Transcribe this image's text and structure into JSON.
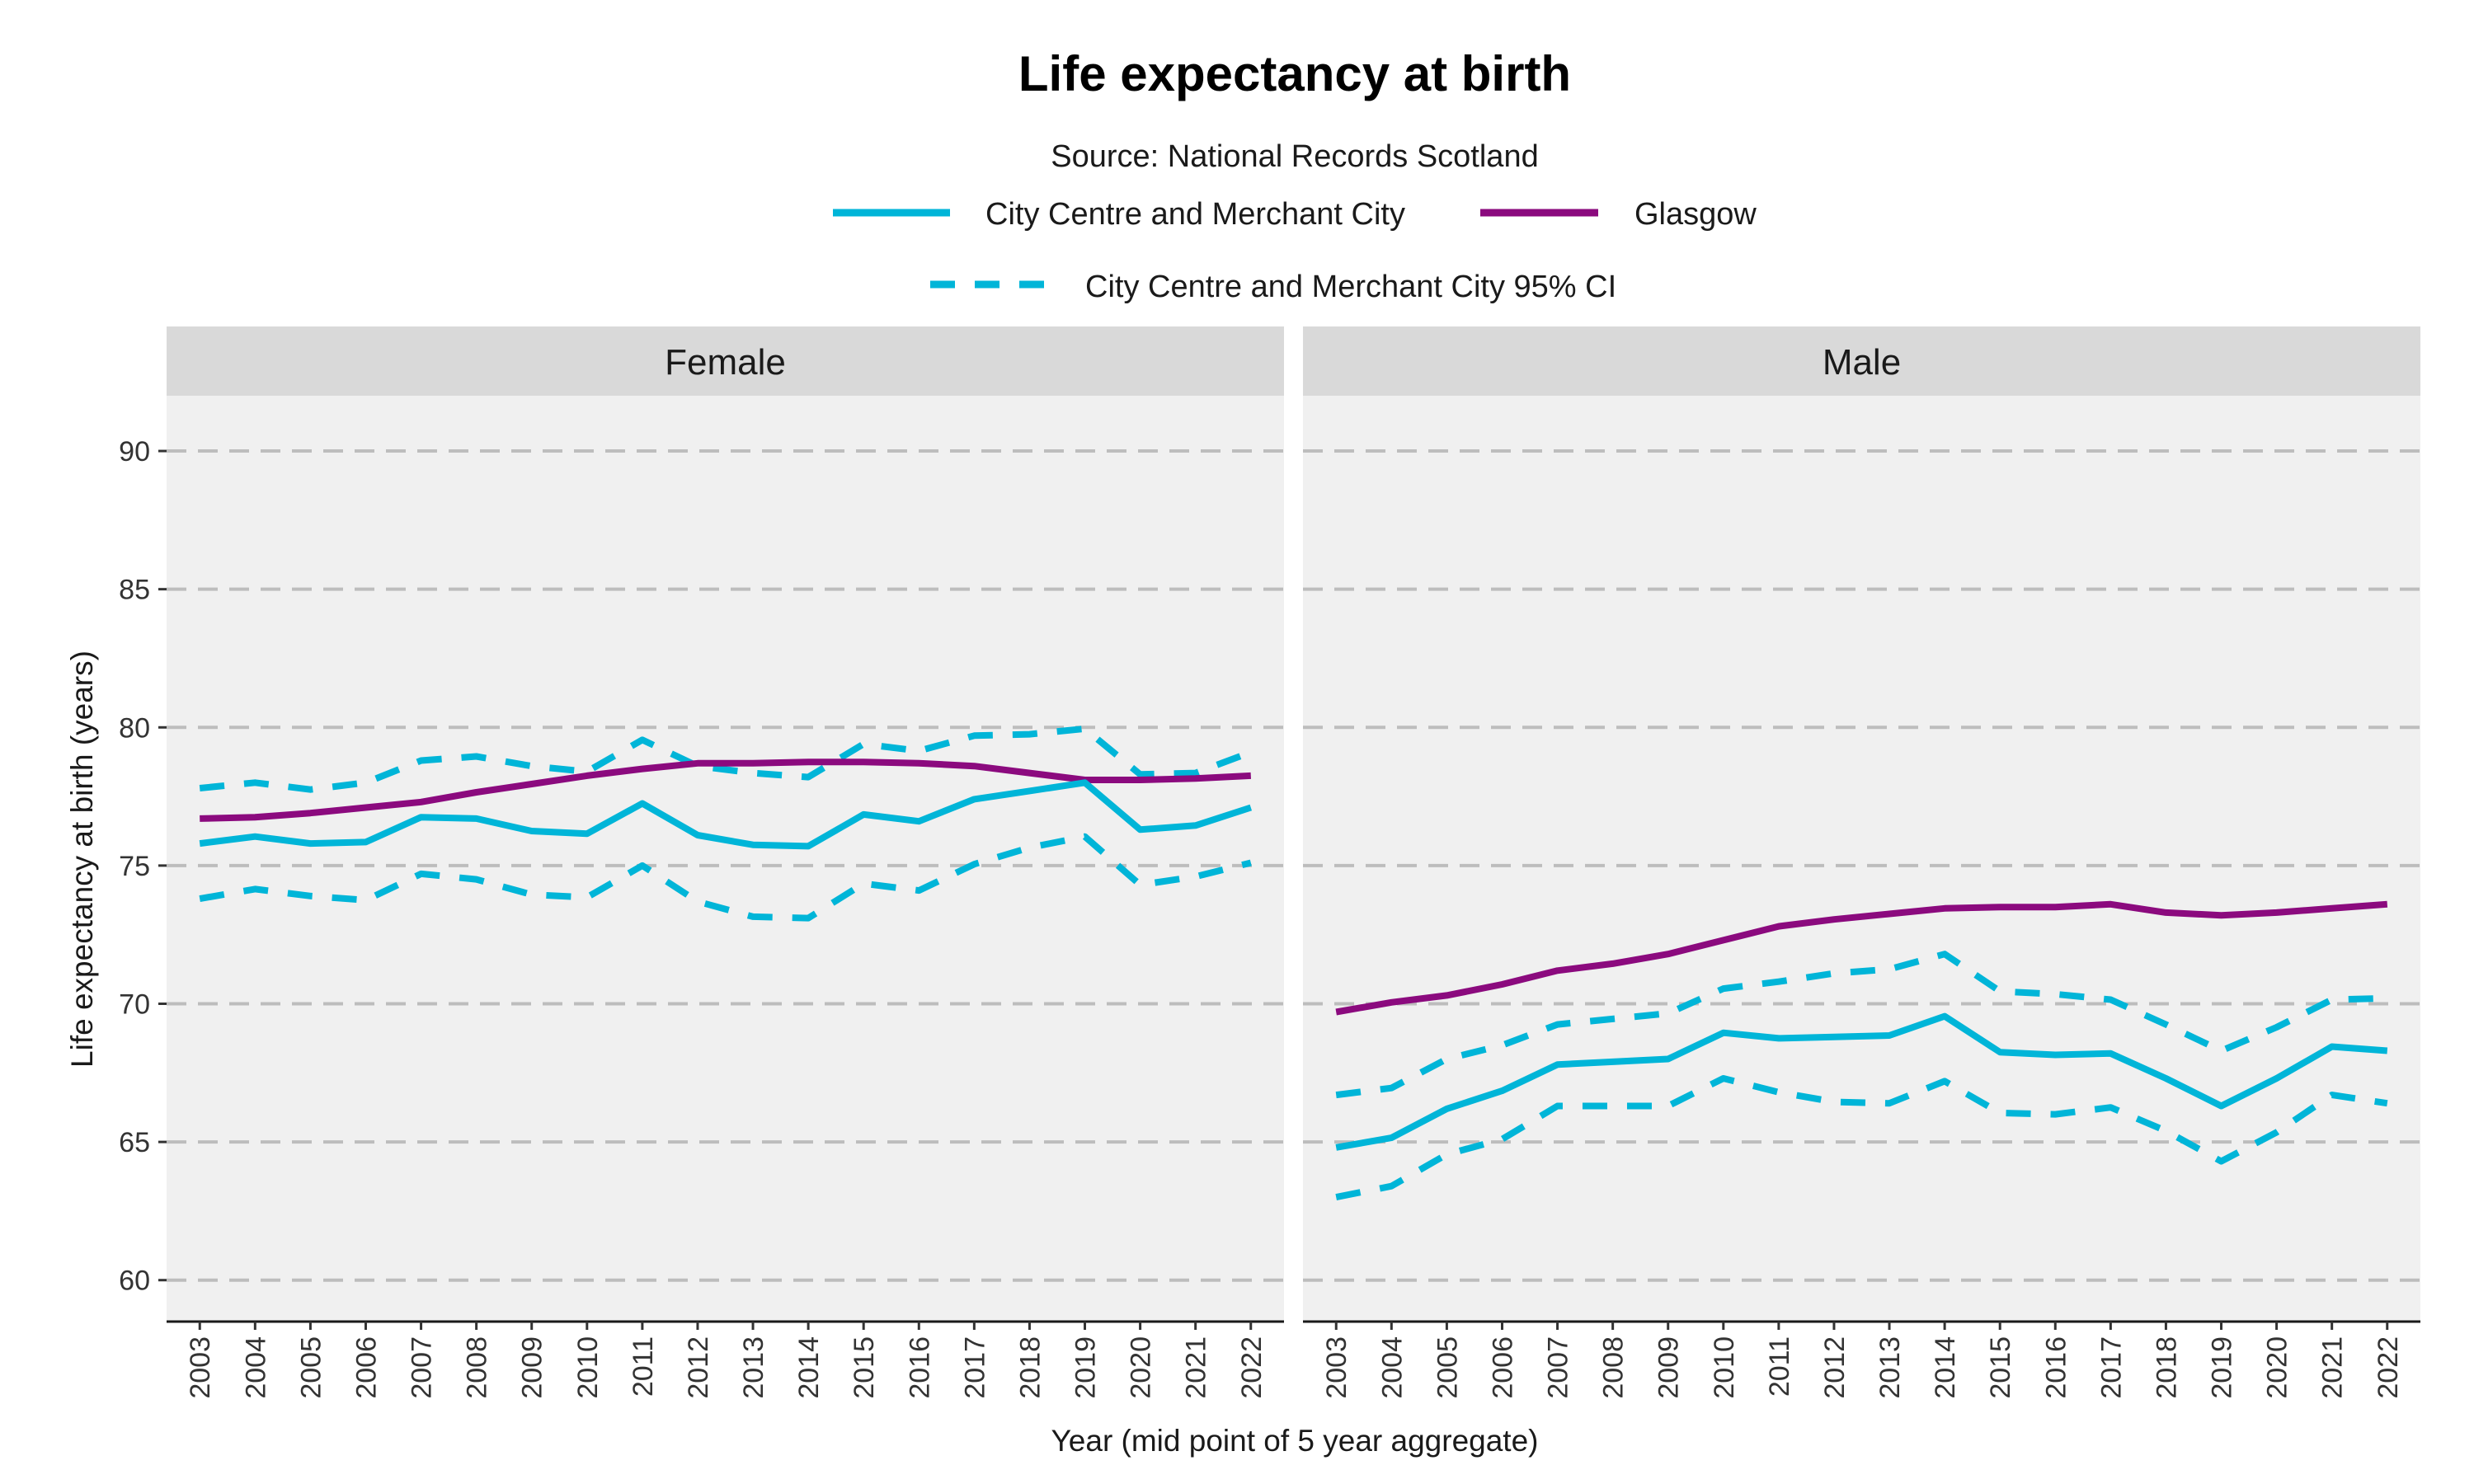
{
  "chart_data": {
    "type": "line",
    "title": "Life expectancy at birth",
    "subtitle": "Source: National Records Scotland",
    "xlabel": "Year (mid point of 5 year aggregate)",
    "ylabel": "Life expectancy at birth (years)",
    "ylim": [
      58.5,
      92
    ],
    "yticks": [
      60,
      65,
      70,
      75,
      80,
      85,
      90
    ],
    "grid": "horizontal dashed",
    "legend_position": "top",
    "legend": [
      {
        "label": "City Centre and Merchant City",
        "style": "solid",
        "color": "#00b5d8"
      },
      {
        "label": "Glasgow",
        "style": "solid",
        "color": "#8b0a7e"
      },
      {
        "label": "City Centre and Merchant City 95% CI",
        "style": "dashed",
        "color": "#00b5d8"
      }
    ],
    "x": [
      "2003",
      "2004",
      "2005",
      "2006",
      "2007",
      "2008",
      "2009",
      "2010",
      "2011",
      "2012",
      "2013",
      "2014",
      "2015",
      "2016",
      "2017",
      "2018",
      "2019",
      "2020",
      "2021",
      "2022"
    ],
    "panels": [
      {
        "name": "Female",
        "series": [
          {
            "name": "City Centre and Merchant City",
            "values": [
              75.8,
              76.05,
              75.8,
              75.85,
              76.75,
              76.7,
              76.25,
              76.15,
              77.25,
              76.1,
              75.75,
              75.7,
              76.85,
              76.6,
              77.4,
              77.7,
              78.0,
              76.3,
              76.45,
              77.1
            ]
          },
          {
            "name": "Glasgow",
            "values": [
              76.7,
              76.75,
              76.9,
              77.1,
              77.3,
              77.65,
              77.95,
              78.25,
              78.5,
              78.7,
              78.7,
              78.75,
              78.75,
              78.7,
              78.6,
              78.35,
              78.1,
              78.1,
              78.15,
              78.25
            ]
          },
          {
            "name": "City Centre and Merchant City 95% CI",
            "values": [
              77.8,
              78.0,
              77.75,
              78.0,
              78.8,
              78.95,
              78.6,
              78.4,
              79.55,
              78.6,
              78.35,
              78.2,
              79.4,
              79.15,
              79.7,
              79.75,
              79.95,
              78.3,
              78.35,
              79.1
            ]
          },
          {
            "name": "City Centre and Merchant City 95% CI",
            "values": [
              73.8,
              74.15,
              73.9,
              73.75,
              74.7,
              74.5,
              73.95,
              73.85,
              75.0,
              73.7,
              73.15,
              73.1,
              74.35,
              74.1,
              75.05,
              75.65,
              76.05,
              74.3,
              74.6,
              75.1
            ]
          }
        ]
      },
      {
        "name": "Male",
        "series": [
          {
            "name": "City Centre and Merchant City",
            "values": [
              64.8,
              65.15,
              66.2,
              66.85,
              67.8,
              67.9,
              68.0,
              68.95,
              68.75,
              68.8,
              68.85,
              69.55,
              68.25,
              68.15,
              68.2,
              67.3,
              66.3,
              67.3,
              68.45,
              68.3
            ]
          },
          {
            "name": "Glasgow",
            "values": [
              69.7,
              70.05,
              70.3,
              70.7,
              71.2,
              71.45,
              71.8,
              72.3,
              72.8,
              73.05,
              73.25,
              73.45,
              73.5,
              73.5,
              73.6,
              73.3,
              73.2,
              73.3,
              73.45,
              73.6
            ]
          },
          {
            "name": "City Centre and Merchant City 95% CI",
            "values": [
              66.7,
              66.95,
              68.0,
              68.5,
              69.25,
              69.45,
              69.65,
              70.55,
              70.8,
              71.1,
              71.25,
              71.8,
              70.45,
              70.35,
              70.15,
              69.25,
              68.3,
              69.15,
              70.15,
              70.2
            ]
          },
          {
            "name": "City Centre and Merchant City 95% CI",
            "values": [
              63.0,
              63.4,
              64.55,
              65.1,
              66.3,
              66.3,
              66.3,
              67.3,
              66.8,
              66.45,
              66.4,
              67.2,
              66.05,
              66.0,
              66.25,
              65.4,
              64.3,
              65.35,
              66.7,
              66.4
            ]
          }
        ]
      }
    ]
  }
}
